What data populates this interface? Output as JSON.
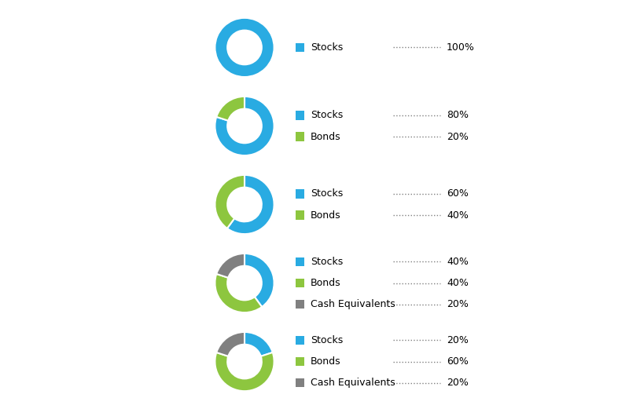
{
  "chart_data": [
    {
      "type": "pie",
      "categories": [
        "Stocks"
      ],
      "values": [
        100
      ],
      "value_labels": [
        "100%"
      ],
      "colors": [
        "#29ABE2"
      ]
    },
    {
      "type": "pie",
      "categories": [
        "Stocks",
        "Bonds"
      ],
      "values": [
        80,
        20
      ],
      "value_labels": [
        "80%",
        "20%"
      ],
      "colors": [
        "#29ABE2",
        "#8DC63F"
      ]
    },
    {
      "type": "pie",
      "categories": [
        "Stocks",
        "Bonds"
      ],
      "values": [
        60,
        40
      ],
      "value_labels": [
        "60%",
        "40%"
      ],
      "colors": [
        "#29ABE2",
        "#8DC63F"
      ]
    },
    {
      "type": "pie",
      "categories": [
        "Stocks",
        "Bonds",
        "Cash Equivalents"
      ],
      "values": [
        40,
        40,
        20
      ],
      "value_labels": [
        "40%",
        "40%",
        "20%"
      ],
      "colors": [
        "#29ABE2",
        "#8DC63F",
        "#808080"
      ]
    },
    {
      "type": "pie",
      "categories": [
        "Stocks",
        "Bonds",
        "Cash Equivalents"
      ],
      "values": [
        20,
        60,
        20
      ],
      "value_labels": [
        "20%",
        "60%",
        "20%"
      ],
      "colors": [
        "#29ABE2",
        "#8DC63F",
        "#808080"
      ]
    }
  ]
}
